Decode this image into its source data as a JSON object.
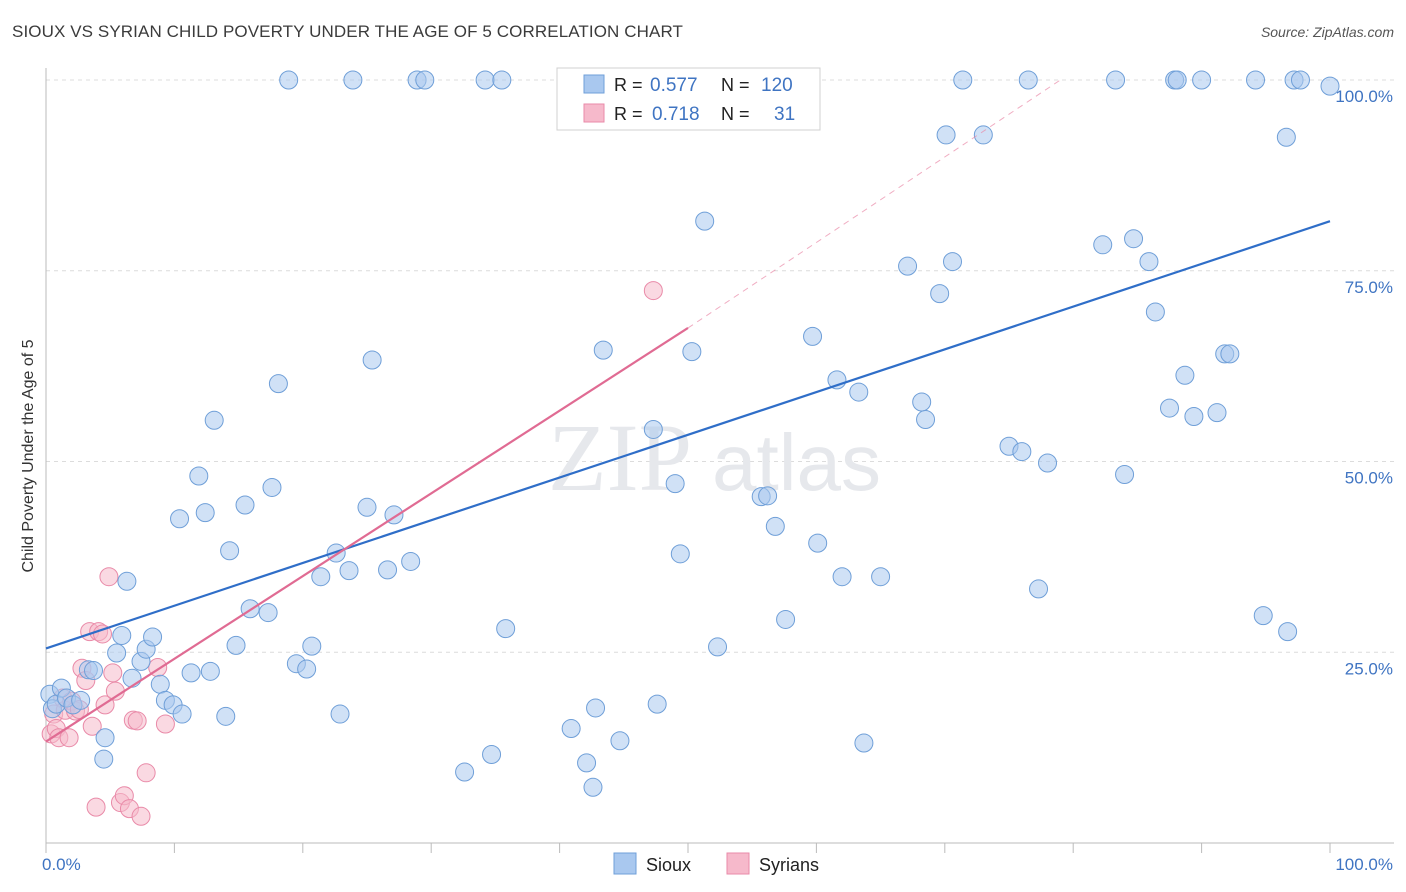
{
  "header": {
    "title": "SIOUX VS SYRIAN CHILD POVERTY UNDER THE AGE OF 5 CORRELATION CHART",
    "source": "Source: ZipAtlas.com"
  },
  "watermark": {
    "part1": "ZIP",
    "part2": "atlas"
  },
  "colors": {
    "sioux_fill": "#a9c8ef",
    "sioux_stroke": "#6f9fd8",
    "sioux_line": "#2f6ec8",
    "syrian_fill": "#f6b9cb",
    "syrian_stroke": "#e98aa8",
    "syrian_line": "#e06b93",
    "grid": "#dcdcdc",
    "tick_text": "#3f74c2"
  },
  "legend": {
    "rows": [
      {
        "r_label": "R =",
        "r_value": "0.577",
        "n_label": "N =",
        "n_value": "120"
      },
      {
        "r_label": "R =",
        "r_value": "0.718",
        "n_label": "N =",
        "n_value": "31"
      }
    ]
  },
  "chart_data": {
    "type": "scatter",
    "title": "SIOUX VS SYRIAN CHILD POVERTY UNDER THE AGE OF 5 CORRELATION CHART",
    "xlabel": "",
    "ylabel": "Child Poverty Under the Age of 5",
    "xlim": [
      0,
      100
    ],
    "ylim": [
      0,
      100
    ],
    "x_tick_labels": [
      {
        "value": 0,
        "label": "0.0%"
      },
      {
        "value": 100,
        "label": "100.0%"
      }
    ],
    "y_tick_labels": [
      {
        "value": 25,
        "label": "25.0%"
      },
      {
        "value": 50,
        "label": "50.0%"
      },
      {
        "value": 75,
        "label": "75.0%"
      },
      {
        "value": 100,
        "label": "100.0%"
      }
    ],
    "gridlines_y": [
      25,
      50,
      75,
      100
    ],
    "legend_entries": [
      "Sioux",
      "Syrians"
    ],
    "series": [
      {
        "name": "Sioux",
        "r": 0.577,
        "n": 120,
        "trend": {
          "x": [
            0,
            100
          ],
          "y": [
            25.5,
            81.5
          ]
        },
        "points": [
          [
            0.3,
            19.5
          ],
          [
            0.5,
            17.6
          ],
          [
            0.8,
            18.2
          ],
          [
            1.2,
            20.3
          ],
          [
            1.6,
            19.0
          ],
          [
            2.1,
            18.1
          ],
          [
            2.7,
            18.7
          ],
          [
            3.3,
            22.7
          ],
          [
            3.7,
            22.6
          ],
          [
            4.5,
            11.0
          ],
          [
            4.6,
            13.8
          ],
          [
            5.5,
            24.9
          ],
          [
            5.9,
            27.2
          ],
          [
            6.3,
            34.3
          ],
          [
            6.7,
            21.6
          ],
          [
            7.4,
            23.8
          ],
          [
            7.8,
            25.4
          ],
          [
            8.3,
            27.0
          ],
          [
            8.9,
            20.8
          ],
          [
            9.3,
            18.7
          ],
          [
            9.9,
            18.1
          ],
          [
            10.4,
            42.5
          ],
          [
            10.6,
            16.9
          ],
          [
            11.3,
            22.3
          ],
          [
            11.9,
            48.1
          ],
          [
            12.4,
            43.3
          ],
          [
            12.8,
            22.5
          ],
          [
            13.1,
            55.4
          ],
          [
            14.0,
            16.6
          ],
          [
            14.3,
            38.3
          ],
          [
            14.8,
            25.9
          ],
          [
            15.5,
            44.3
          ],
          [
            15.9,
            30.7
          ],
          [
            17.3,
            30.2
          ],
          [
            17.6,
            46.6
          ],
          [
            18.1,
            60.2
          ],
          [
            18.9,
            100.0
          ],
          [
            19.5,
            23.5
          ],
          [
            20.3,
            22.8
          ],
          [
            20.7,
            25.8
          ],
          [
            21.4,
            34.9
          ],
          [
            22.6,
            38.0
          ],
          [
            22.9,
            16.9
          ],
          [
            23.6,
            35.7
          ],
          [
            23.9,
            100.0
          ],
          [
            25.0,
            44.0
          ],
          [
            25.4,
            63.3
          ],
          [
            26.6,
            35.8
          ],
          [
            27.1,
            43.0
          ],
          [
            28.4,
            36.9
          ],
          [
            28.9,
            100.0
          ],
          [
            29.5,
            100.0
          ],
          [
            32.6,
            9.3
          ],
          [
            34.2,
            100.0
          ],
          [
            34.7,
            11.6
          ],
          [
            35.5,
            100.0
          ],
          [
            35.8,
            28.1
          ],
          [
            40.9,
            15.0
          ],
          [
            42.1,
            10.5
          ],
          [
            42.6,
            7.3
          ],
          [
            42.8,
            17.7
          ],
          [
            43.4,
            64.6
          ],
          [
            44.7,
            13.4
          ],
          [
            45.5,
            100.0
          ],
          [
            47.3,
            54.2
          ],
          [
            47.6,
            18.2
          ],
          [
            48.2,
            100.0
          ],
          [
            49.0,
            47.1
          ],
          [
            49.4,
            37.9
          ],
          [
            50.3,
            64.4
          ],
          [
            51.3,
            81.5
          ],
          [
            52.3,
            25.7
          ],
          [
            54.1,
            100.0
          ],
          [
            55.7,
            45.4
          ],
          [
            56.2,
            45.5
          ],
          [
            56.8,
            41.5
          ],
          [
            57.6,
            29.3
          ],
          [
            59.7,
            66.4
          ],
          [
            60.1,
            39.3
          ],
          [
            61.6,
            60.7
          ],
          [
            62.0,
            34.9
          ],
          [
            63.3,
            59.1
          ],
          [
            63.7,
            13.1
          ],
          [
            65.0,
            34.9
          ],
          [
            67.1,
            75.6
          ],
          [
            68.2,
            57.8
          ],
          [
            68.5,
            55.5
          ],
          [
            69.6,
            72.0
          ],
          [
            70.1,
            92.8
          ],
          [
            70.6,
            76.2
          ],
          [
            71.4,
            100.0
          ],
          [
            73.0,
            92.8
          ],
          [
            75.0,
            52.0
          ],
          [
            76.0,
            51.3
          ],
          [
            76.5,
            100.0
          ],
          [
            77.3,
            33.3
          ],
          [
            78.0,
            49.8
          ],
          [
            82.3,
            78.4
          ],
          [
            83.3,
            100.0
          ],
          [
            84.0,
            48.3
          ],
          [
            84.7,
            79.2
          ],
          [
            85.9,
            76.2
          ],
          [
            86.4,
            69.6
          ],
          [
            87.5,
            57.0
          ],
          [
            87.9,
            100.0
          ],
          [
            88.1,
            100.0
          ],
          [
            88.7,
            61.3
          ],
          [
            89.4,
            55.9
          ],
          [
            90.0,
            100.0
          ],
          [
            91.2,
            56.4
          ],
          [
            91.8,
            64.1
          ],
          [
            92.2,
            64.1
          ],
          [
            94.2,
            100.0
          ],
          [
            94.8,
            29.8
          ],
          [
            96.6,
            92.5
          ],
          [
            96.7,
            27.7
          ],
          [
            97.2,
            100.0
          ],
          [
            97.7,
            100.0
          ],
          [
            100.0,
            99.2
          ]
        ]
      },
      {
        "name": "Syrians",
        "r": 0.718,
        "n": 31,
        "trend": {
          "x": [
            0,
            50
          ],
          "y": [
            13.3,
            67.5
          ]
        },
        "trend_extension": {
          "x": [
            50,
            79.0
          ],
          "y": [
            67.5,
            100.0
          ]
        },
        "points": [
          [
            0.4,
            14.3
          ],
          [
            0.6,
            16.9
          ],
          [
            0.8,
            15.0
          ],
          [
            1.0,
            13.8
          ],
          [
            1.3,
            19.0
          ],
          [
            1.5,
            17.4
          ],
          [
            1.8,
            13.8
          ],
          [
            2.0,
            18.6
          ],
          [
            2.3,
            17.3
          ],
          [
            2.6,
            17.5
          ],
          [
            2.8,
            22.9
          ],
          [
            3.1,
            21.3
          ],
          [
            3.4,
            27.7
          ],
          [
            3.6,
            15.3
          ],
          [
            3.9,
            4.7
          ],
          [
            4.1,
            27.7
          ],
          [
            4.4,
            27.4
          ],
          [
            4.6,
            18.1
          ],
          [
            4.9,
            34.9
          ],
          [
            5.2,
            22.3
          ],
          [
            5.4,
            19.9
          ],
          [
            5.8,
            5.3
          ],
          [
            6.1,
            6.2
          ],
          [
            6.5,
            4.5
          ],
          [
            6.8,
            16.1
          ],
          [
            7.1,
            16.0
          ],
          [
            7.4,
            3.5
          ],
          [
            7.8,
            9.2
          ],
          [
            8.7,
            23.0
          ],
          [
            9.3,
            15.6
          ],
          [
            47.3,
            72.4
          ]
        ]
      }
    ]
  }
}
